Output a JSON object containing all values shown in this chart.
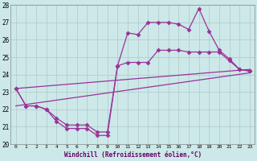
{
  "xlabel": "Windchill (Refroidissement éolien,°C)",
  "xlim": [
    -0.5,
    23.5
  ],
  "ylim": [
    20,
    28
  ],
  "xticks": [
    0,
    1,
    2,
    3,
    4,
    5,
    6,
    7,
    8,
    9,
    10,
    11,
    12,
    13,
    14,
    15,
    16,
    17,
    18,
    19,
    20,
    21,
    22,
    23
  ],
  "yticks": [
    20,
    21,
    22,
    23,
    24,
    25,
    26,
    27,
    28
  ],
  "background_color": "#cce8e8",
  "line_color": "#993399",
  "grid_color": "#b0c8c8",
  "series": [
    {
      "x": [
        0,
        1,
        2,
        3,
        4,
        5,
        6,
        7,
        8,
        9,
        10,
        11,
        12,
        13,
        14,
        15,
        16,
        17,
        18,
        19,
        20,
        21,
        22,
        23
      ],
      "y": [
        23.2,
        22.2,
        22.2,
        22.0,
        21.3,
        20.9,
        20.9,
        20.9,
        20.5,
        20.5,
        24.5,
        26.4,
        26.3,
        27.0,
        27.0,
        27.0,
        26.9,
        26.6,
        27.8,
        26.5,
        25.4,
        24.9,
        24.3,
        24.2
      ],
      "marker": "D",
      "markersize": 2.5,
      "linewidth": 0.9
    },
    {
      "x": [
        0,
        1,
        2,
        3,
        4,
        5,
        6,
        7,
        8,
        9,
        10,
        11,
        12,
        13,
        14,
        15,
        16,
        17,
        18,
        19,
        20,
        21,
        22,
        23
      ],
      "y": [
        23.2,
        22.2,
        22.2,
        22.0,
        21.5,
        21.1,
        21.1,
        21.1,
        20.7,
        20.7,
        24.5,
        24.7,
        24.7,
        24.7,
        25.4,
        25.4,
        25.4,
        25.3,
        25.3,
        25.3,
        25.3,
        24.8,
        24.3,
        24.2
      ],
      "marker": "D",
      "markersize": 2.5,
      "linewidth": 0.9
    },
    {
      "x": [
        0,
        23
      ],
      "y": [
        22.2,
        24.1
      ],
      "marker": null,
      "markersize": 0,
      "linewidth": 0.9
    },
    {
      "x": [
        0,
        23
      ],
      "y": [
        23.2,
        24.3
      ],
      "marker": null,
      "markersize": 0,
      "linewidth": 0.9
    }
  ]
}
